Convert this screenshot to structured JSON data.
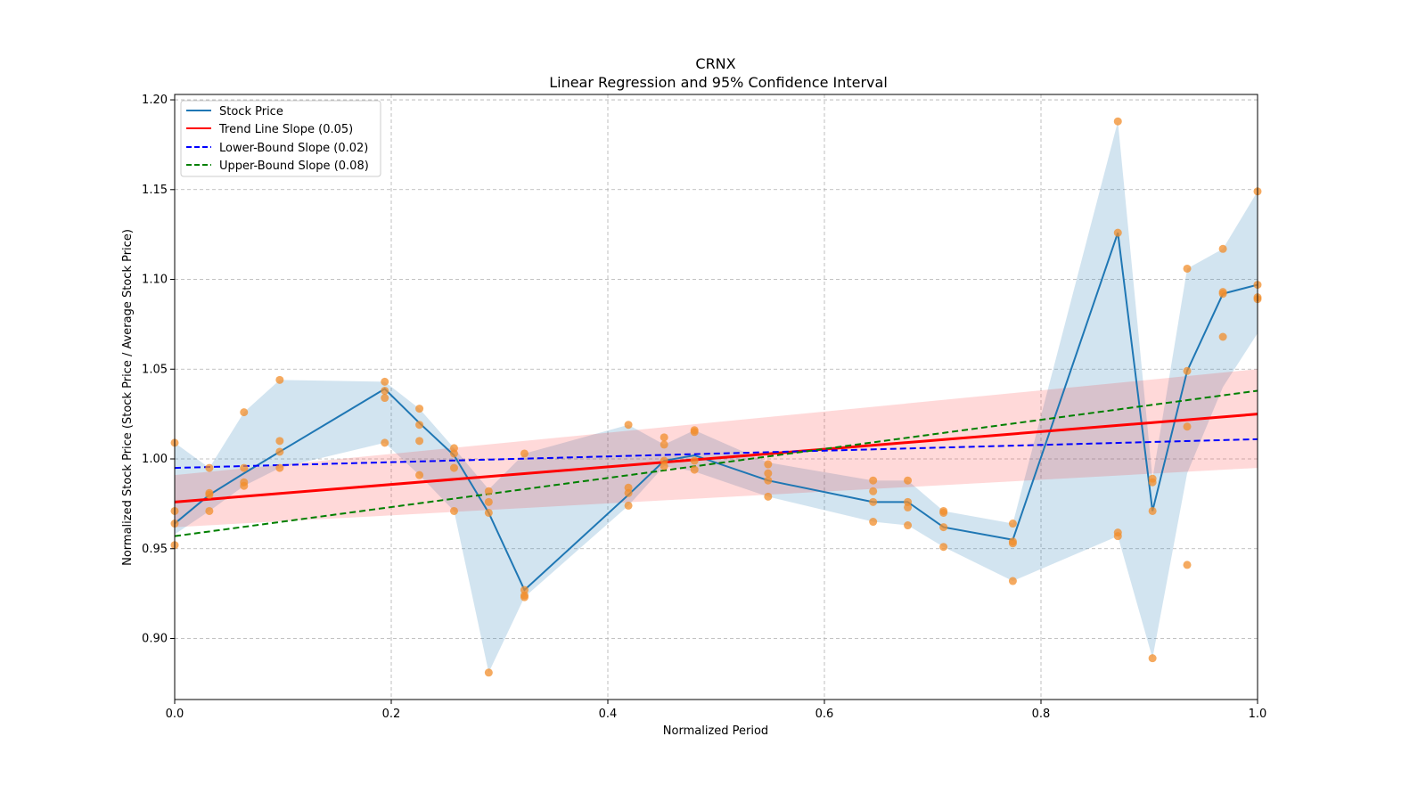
{
  "chart_data": {
    "type": "line",
    "title": "CRNX",
    "subtitle": "Linear Regression and 95% Confidence Interval",
    "xlabel": "Normalized Period",
    "ylabel": "Normalized Stock Price (Stock Price / Average Stock Price)",
    "xlim": [
      0.0,
      1.0
    ],
    "ylim": [
      0.866,
      1.203
    ],
    "xticks": [
      "0.0",
      "0.2",
      "0.4",
      "0.6",
      "0.8",
      "1.0"
    ],
    "xtick_values": [
      0.0,
      0.2,
      0.4,
      0.6,
      0.8,
      1.0
    ],
    "yticks": [
      "0.90",
      "0.95",
      "1.00",
      "1.05",
      "1.10",
      "1.15",
      "1.20"
    ],
    "ytick_values": [
      0.9,
      0.95,
      1.0,
      1.05,
      1.1,
      1.15,
      1.2
    ],
    "grid": true,
    "legend_position": "top-left",
    "legend": [
      {
        "label": "Stock Price",
        "color": "#1f77b4",
        "style": "solid"
      },
      {
        "label": "Trend Line Slope (0.05)",
        "color": "#ff0000",
        "style": "solid"
      },
      {
        "label": "Lower-Bound Slope (0.02)",
        "color": "#0000ff",
        "style": "dashed"
      },
      {
        "label": "Upper-Bound Slope (0.08)",
        "color": "#008000",
        "style": "dashed"
      }
    ],
    "colors": {
      "stock": "#1f77b4",
      "band": "#b3cde3",
      "scatter": "#f28e2b",
      "trend": "#ff0000",
      "trend_band": "#ffb3b3",
      "lower": "#0000ff",
      "upper": "#008000"
    },
    "stock_price": {
      "x": [
        0.0,
        0.032,
        0.064,
        0.097,
        0.194,
        0.226,
        0.258,
        0.29,
        0.323,
        0.419,
        0.452,
        0.48,
        0.548,
        0.645,
        0.677,
        0.71,
        0.774,
        0.871,
        0.903,
        0.935,
        0.968,
        1.0
      ],
      "y": [
        0.964,
        0.98,
        0.992,
        1.004,
        1.039,
        1.02,
        1.002,
        0.97,
        0.927,
        0.98,
        0.999,
        1.002,
        0.988,
        0.976,
        0.976,
        0.962,
        0.955,
        1.126,
        0.971,
        1.049,
        1.092,
        1.097
      ],
      "band_low": [
        0.958,
        0.971,
        0.985,
        0.995,
        1.009,
        0.991,
        0.971,
        0.881,
        0.923,
        0.974,
        0.996,
        0.993,
        0.979,
        0.965,
        0.963,
        0.951,
        0.932,
        0.957,
        0.889,
        0.992,
        1.04,
        1.07
      ],
      "band_high": [
        1.009,
        0.995,
        1.026,
        1.044,
        1.043,
        1.028,
        1.006,
        0.983,
        1.003,
        1.019,
        1.008,
        1.016,
        0.998,
        0.988,
        0.988,
        0.971,
        0.964,
        1.188,
        0.989,
        1.106,
        1.117,
        1.149
      ]
    },
    "scatter": {
      "x": [
        0.0,
        0.0,
        0.0,
        0.0,
        0.032,
        0.032,
        0.032,
        0.032,
        0.064,
        0.064,
        0.064,
        0.064,
        0.097,
        0.097,
        0.097,
        0.097,
        0.194,
        0.194,
        0.194,
        0.194,
        0.226,
        0.226,
        0.226,
        0.226,
        0.258,
        0.258,
        0.258,
        0.258,
        0.29,
        0.29,
        0.29,
        0.29,
        0.323,
        0.323,
        0.323,
        0.323,
        0.419,
        0.419,
        0.419,
        0.419,
        0.452,
        0.452,
        0.452,
        0.452,
        0.48,
        0.48,
        0.48,
        0.48,
        0.548,
        0.548,
        0.548,
        0.548,
        0.645,
        0.645,
        0.645,
        0.645,
        0.677,
        0.677,
        0.677,
        0.677,
        0.71,
        0.71,
        0.71,
        0.71,
        0.774,
        0.774,
        0.774,
        0.774,
        0.871,
        0.871,
        0.871,
        0.871,
        0.903,
        0.903,
        0.903,
        0.903,
        0.935,
        0.935,
        0.935,
        0.935,
        0.968,
        0.968,
        0.968,
        0.968,
        1.0,
        1.0,
        1.0,
        1.0
      ],
      "y": [
        1.009,
        0.971,
        0.964,
        0.952,
        0.995,
        0.981,
        0.98,
        0.971,
        1.026,
        0.995,
        0.987,
        0.985,
        1.044,
        1.01,
        1.004,
        0.995,
        1.043,
        1.038,
        1.034,
        1.009,
        1.028,
        1.019,
        1.01,
        0.991,
        1.006,
        1.003,
        0.995,
        0.971,
        0.982,
        0.976,
        0.97,
        0.881,
        1.003,
        0.927,
        0.924,
        0.923,
        1.019,
        0.984,
        0.981,
        0.974,
        1.012,
        1.008,
        0.999,
        0.996,
        1.016,
        1.015,
        0.999,
        0.994,
        0.997,
        0.992,
        0.988,
        0.979,
        0.988,
        0.982,
        0.976,
        0.965,
        0.988,
        0.976,
        0.973,
        0.963,
        0.971,
        0.97,
        0.962,
        0.951,
        0.964,
        0.954,
        0.953,
        0.932,
        1.188,
        1.126,
        0.959,
        0.957,
        0.989,
        0.987,
        0.971,
        0.889,
        1.106,
        1.049,
        1.018,
        0.941,
        1.117,
        1.093,
        1.092,
        1.068,
        1.149,
        1.097,
        1.09,
        1.089
      ]
    },
    "trend_line": {
      "slope": 0.05,
      "x": [
        0.0,
        1.0
      ],
      "y": [
        0.976,
        1.025
      ],
      "band_low": [
        0.962,
        0.995
      ],
      "band_high": [
        0.991,
        1.05
      ]
    },
    "lower_bound_line": {
      "slope": 0.02,
      "x": [
        0.0,
        1.0
      ],
      "y": [
        0.995,
        1.011
      ]
    },
    "upper_bound_line": {
      "slope": 0.08,
      "x": [
        0.0,
        1.0
      ],
      "y": [
        0.957,
        1.038
      ]
    }
  }
}
